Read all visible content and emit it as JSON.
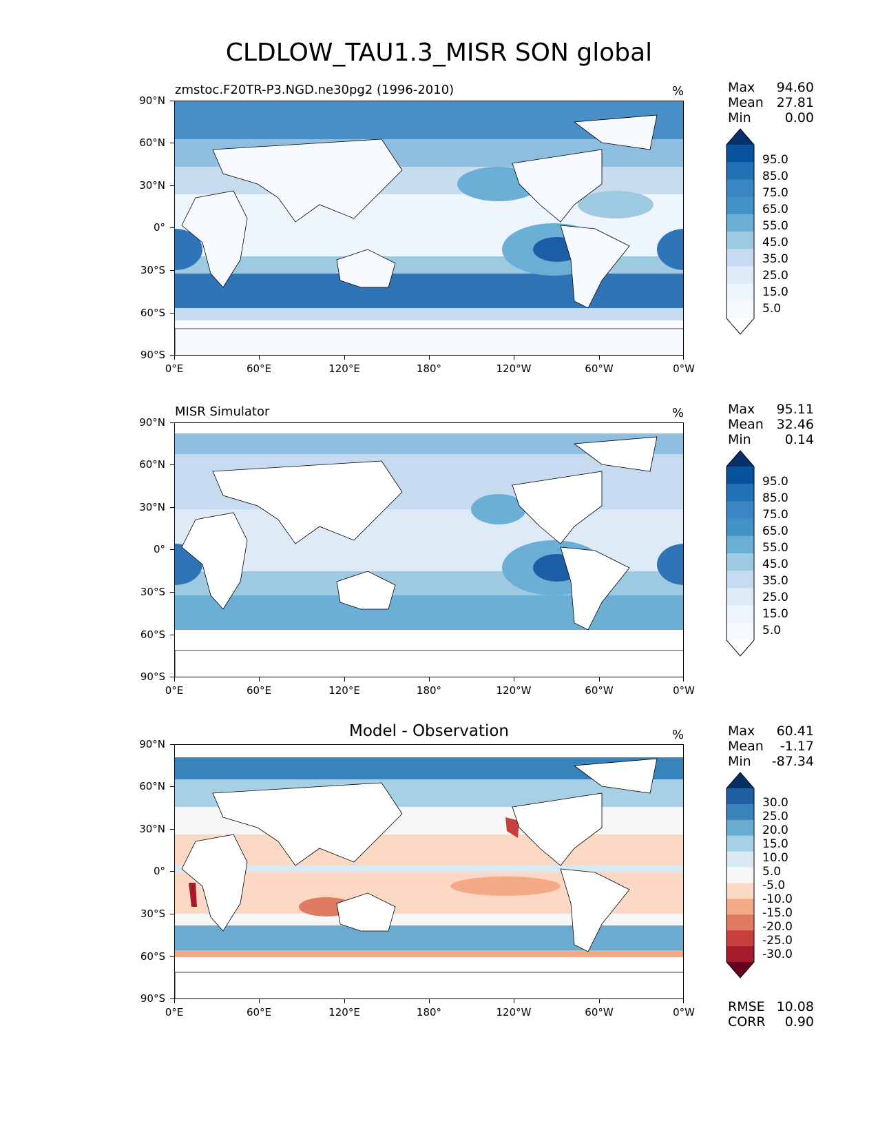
{
  "title": "CLDLOW_TAU1.3_MISR SON global",
  "axes": {
    "lat_labels": [
      "90°N",
      "60°N",
      "30°N",
      "0°",
      "30°S",
      "60°S",
      "90°S"
    ],
    "lon_labels": [
      "0°E",
      "60°E",
      "120°E",
      "180°",
      "120°W",
      "60°W",
      "0°W"
    ]
  },
  "panels": [
    {
      "left_title": "zmstoc.F20TR-P3.NGD.ne30pg2 (1996-2010)",
      "center_title": "",
      "units": "%",
      "stats": [
        {
          "label": "Max",
          "value": "94.60"
        },
        {
          "label": "Mean",
          "value": "27.81"
        },
        {
          "label": "Min",
          "value": "0.00"
        }
      ],
      "colorbar": {
        "labels": [
          "95.0",
          "85.0",
          "75.0",
          "65.0",
          "55.0",
          "45.0",
          "35.0",
          "25.0",
          "15.0",
          "5.0"
        ],
        "colors": [
          "#08306b",
          "#08519c",
          "#2171b5",
          "#3a86c4",
          "#4292c6",
          "#6baed6",
          "#9ecae1",
          "#c6dbef",
          "#deebf7",
          "#eef5fc",
          "#f7fbff",
          "#ffffff"
        ]
      },
      "metrics": []
    },
    {
      "left_title": "MISR Simulator",
      "center_title": "",
      "units": "%",
      "stats": [
        {
          "label": "Max",
          "value": "95.11"
        },
        {
          "label": "Mean",
          "value": "32.46"
        },
        {
          "label": "Min",
          "value": "0.14"
        }
      ],
      "colorbar": {
        "labels": [
          "95.0",
          "85.0",
          "75.0",
          "65.0",
          "55.0",
          "45.0",
          "35.0",
          "25.0",
          "15.0",
          "5.0"
        ],
        "colors": [
          "#08306b",
          "#08519c",
          "#2171b5",
          "#3a86c4",
          "#4292c6",
          "#6baed6",
          "#9ecae1",
          "#c6dbef",
          "#deebf7",
          "#eef5fc",
          "#f7fbff",
          "#ffffff"
        ]
      },
      "metrics": []
    },
    {
      "left_title": "",
      "center_title": "Model - Observation",
      "units": "%",
      "stats": [
        {
          "label": "Max",
          "value": "60.41"
        },
        {
          "label": "Mean",
          "value": "-1.17"
        },
        {
          "label": "Min",
          "value": "-87.34"
        }
      ],
      "colorbar": {
        "labels": [
          "30.0",
          "25.0",
          "20.0",
          "15.0",
          "10.0",
          "5.0",
          "-5.0",
          "-10.0",
          "-15.0",
          "-20.0",
          "-25.0",
          "-30.0"
        ],
        "colors": [
          "#053061",
          "#1e5fa3",
          "#3784bb",
          "#6aacd0",
          "#a8d0e4",
          "#d8e9f1",
          "#f7f7f7",
          "#fbd9c5",
          "#f4a988",
          "#e07b63",
          "#c8403e",
          "#a51a2c",
          "#67001f"
        ]
      },
      "metrics": [
        {
          "label": "RMSE",
          "value": "10.08"
        },
        {
          "label": "CORR",
          "value": "0.90"
        }
      ]
    }
  ]
}
